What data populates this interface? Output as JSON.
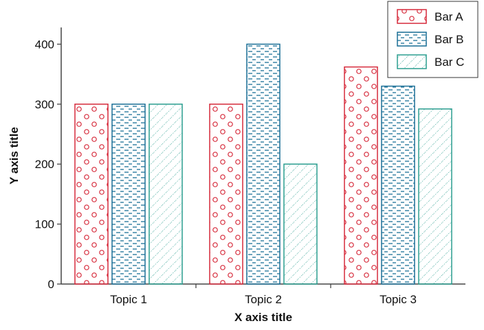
{
  "chart_data": {
    "type": "bar",
    "title": "",
    "xlabel": "X axis title",
    "ylabel": "Y axis title",
    "categories": [
      "Topic 1",
      "Topic 2",
      "Topic 3"
    ],
    "ylim": [
      0,
      430
    ],
    "yticks": [
      0,
      100,
      200,
      300,
      400
    ],
    "grid": false,
    "legend_position": "top-right",
    "series": [
      {
        "name": "Bar A",
        "values": [
          300,
          300,
          362
        ],
        "color": "#d6293a",
        "pattern": "circles"
      },
      {
        "name": "Bar B",
        "values": [
          300,
          400,
          330
        ],
        "color": "#1a6f96",
        "pattern": "horizontal-dashes"
      },
      {
        "name": "Bar C",
        "values": [
          300,
          200,
          292
        ],
        "color": "#2a9d8f",
        "pattern": "diagonal-dots"
      }
    ]
  }
}
